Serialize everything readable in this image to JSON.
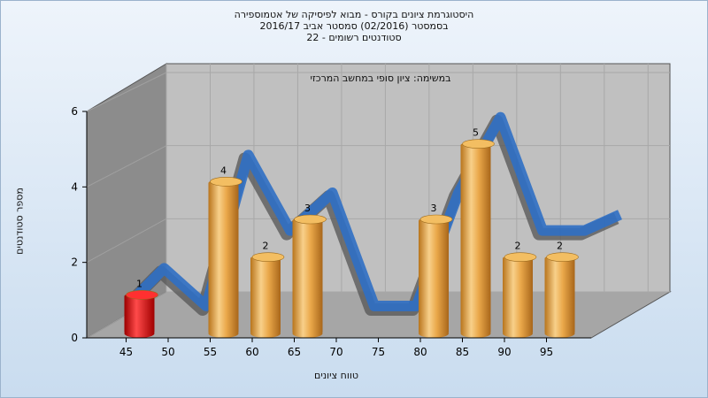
{
  "title": {
    "line1": "היסטוגרמת ציונים בקורס - מבוא לפיסיקה של אטמוספירה",
    "line2": "בסמסטר  (02/2016)  סמסטר אביב 2016/17",
    "line3": "סטודנטים רשומים - 22"
  },
  "chart_data": {
    "type": "bar",
    "title": "היסטוגרמת ציונים בקורס - מבוא לפיסיקה של אטמוספירה",
    "annotation": "במשימה: ציון סופי במחשב המרכזי",
    "xlabel": "טווח ציונים",
    "ylabel": "מספר סטודנטים",
    "categories": [
      "45",
      "50",
      "55",
      "60",
      "65",
      "70",
      "75",
      "80",
      "85",
      "90",
      "95"
    ],
    "values": [
      1,
      0,
      4,
      2,
      3,
      0,
      0,
      3,
      5,
      2,
      2
    ],
    "value_labels": [
      "1",
      "",
      "4",
      "2",
      "3",
      "",
      "",
      "3",
      "5",
      "2",
      "2"
    ],
    "yticks": [
      "0",
      "2",
      "4",
      "6"
    ],
    "ylim": [
      0,
      6
    ],
    "grid": true,
    "colors": {
      "highlight": "#e01010",
      "bar": "#e8a640",
      "ribbon": "#2f6fc4",
      "shadow": "#5a5a5a",
      "wall": "#c0c0c0"
    },
    "highlight_index": 0
  }
}
